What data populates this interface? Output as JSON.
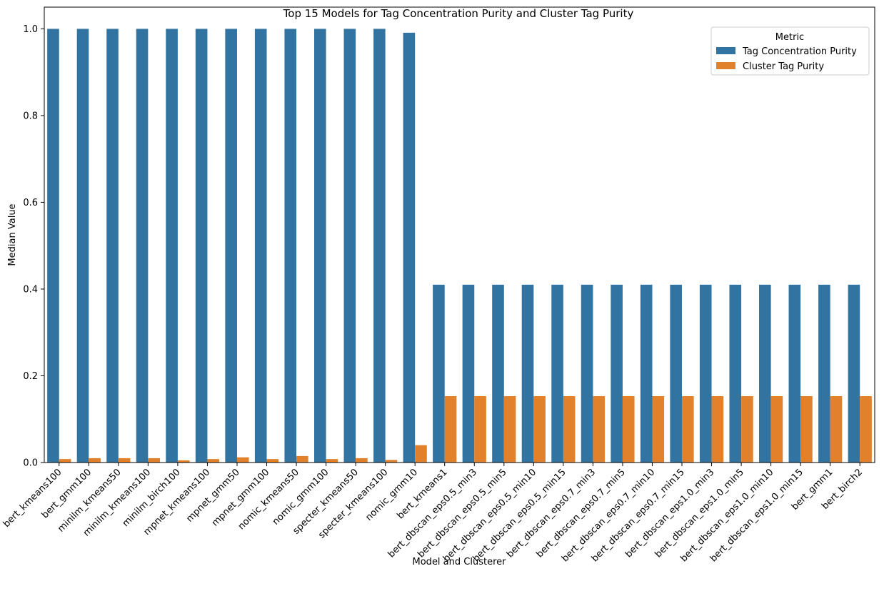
{
  "chart_data": {
    "type": "bar",
    "title": "Top 15 Models for Tag Concentration Purity and Cluster Tag Purity",
    "xlabel": "Model and Clusterer",
    "ylabel": "Median Value",
    "ylim": [
      0,
      1.05
    ],
    "yticks": [
      "0.0",
      "0.2",
      "0.4",
      "0.6",
      "0.8",
      "1.0"
    ],
    "grid": false,
    "legend": {
      "title": "Metric",
      "placement": "top-right"
    },
    "categories": [
      "bert_kmeans100",
      "bert_gmm100",
      "minilm_kmeans50",
      "minilm_kmeans100",
      "minilm_birch100",
      "mpnet_kmeans100",
      "mpnet_gmm50",
      "mpnet_gmm100",
      "nomic_kmeans50",
      "nomic_gmm100",
      "specter_kmeans50",
      "specter_kmeans100",
      "nomic_gmm10",
      "bert_kmeans1",
      "bert_dbscan_eps0.5_min3",
      "bert_dbscan_eps0.5_min5",
      "bert_dbscan_eps0.5_min10",
      "bert_dbscan_eps0.5_min15",
      "bert_dbscan_eps0.7_min3",
      "bert_dbscan_eps0.7_min5",
      "bert_dbscan_eps0.7_min10",
      "bert_dbscan_eps0.7_min15",
      "bert_dbscan_eps1.0_min3",
      "bert_dbscan_eps1.0_min5",
      "bert_dbscan_eps1.0_min10",
      "bert_dbscan_eps1.0_min15",
      "bert_gmm1",
      "bert_birch2"
    ],
    "series": [
      {
        "name": "Tag Concentration Purity",
        "color": "#3274a1",
        "values": [
          1.0,
          1.0,
          1.0,
          1.0,
          1.0,
          1.0,
          1.0,
          1.0,
          1.0,
          1.0,
          1.0,
          1.0,
          0.991,
          0.41,
          0.41,
          0.41,
          0.41,
          0.41,
          0.41,
          0.41,
          0.41,
          0.41,
          0.41,
          0.41,
          0.41,
          0.41,
          0.41,
          0.41
        ]
      },
      {
        "name": "Cluster Tag Purity",
        "color": "#e1812c",
        "values": [
          0.008,
          0.01,
          0.01,
          0.01,
          0.005,
          0.008,
          0.012,
          0.008,
          0.015,
          0.008,
          0.01,
          0.006,
          0.04,
          0.153,
          0.153,
          0.153,
          0.153,
          0.153,
          0.153,
          0.153,
          0.153,
          0.153,
          0.153,
          0.153,
          0.153,
          0.153,
          0.153,
          0.153
        ]
      }
    ]
  }
}
